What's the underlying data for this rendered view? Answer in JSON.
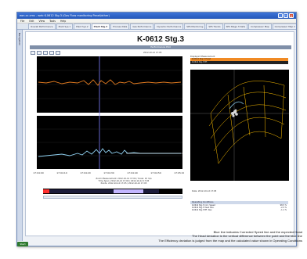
{
  "window": {
    "title": "eon.cc.cms - web K-0612 Stg.3 (Gas Flow monitoring Panel/other)",
    "menu": [
      "File",
      "Edit",
      "View",
      "Tools",
      "Help"
    ]
  },
  "tabs": [
    "Overall Performance",
    "Plant Sys.1",
    "Plant Sys.2",
    "Plant Stg.3",
    "Process Data",
    "Gas Performance",
    "Dynamic Performance",
    "SPS Monitoring",
    "SPS Trends",
    "SPS Stage 3 Data",
    "Compressor Map",
    "Compressor Map 2",
    "SPS Plant Overview"
  ],
  "active_tab_index": 3,
  "side_label": "Navigation",
  "page": {
    "title": "K-0612 Stg.3",
    "panel_header": "Performance Plot"
  },
  "left_plot": {
    "header_time": "2012-10-12 17:05",
    "x_ticks": [
      "17:04:00",
      "17:04:10",
      "17:04:20",
      "17:04:30",
      "17:04:40",
      "17:04:50",
      "17:05:00"
    ],
    "status_lines": [
      "Zoom Measurement: 2012-10-12 17:04 / Scale: 10 m/s",
      "Time Span: 2012-10-12 17:00 / 2012-10-12 17:05",
      "Points: 2012-10-12 17:05 / 2012-10-12 17:05"
    ]
  },
  "right_panel": {
    "label_title": "Displayed Measurement",
    "rows": [
      "K-0612 Stg.3 Head",
      "K-0612 Stg.3 Eff."
    ],
    "plot_caption": "Date: 2012-10-12 17:05",
    "info_header": "Operating Conditions",
    "info_rows": [
      [
        "K-0612 Stg.3 Corr. Speed",
        "98.5 %"
      ],
      [
        "K-0612 Stg.3 Head Dev.",
        "-2.3 %"
      ],
      [
        "K-0612 Stg.3 Eff. Dev.",
        "-1.1 %"
      ]
    ]
  },
  "footer": {
    "lines": [
      "Blue line indicates Corrected Speed line and the expected Head",
      "The Head deviation is the vertical difference between the point and the blue line",
      "The Efficiency deviation is judged from the map and the calculated value shown in Operating Conditions"
    ]
  },
  "taskbar": {
    "start": "Start"
  },
  "colors": {
    "accent": "#f08a24",
    "trend_orange": "#e07a20",
    "trend_blue": "#8fd0f0",
    "map_grid": "#ffc000"
  }
}
